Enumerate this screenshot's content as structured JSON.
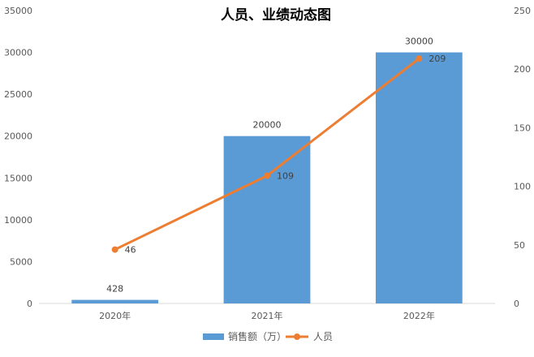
{
  "chart_data": {
    "type": "bar",
    "title": "人员、业绩动态图",
    "categories": [
      "2020年",
      "2021年",
      "2022年"
    ],
    "series": [
      {
        "name": "销售额（万）",
        "type": "bar",
        "axis": "left",
        "values": [
          428,
          20000,
          30000
        ],
        "data_labels": [
          "428",
          "20000",
          "30000"
        ],
        "color": "#5B9BD5"
      },
      {
        "name": "人员",
        "type": "line",
        "axis": "right",
        "values": [
          46,
          109,
          209
        ],
        "data_labels": [
          "46",
          "109",
          "209"
        ],
        "color": "#ED7D31"
      }
    ],
    "y_left": {
      "min": 0,
      "max": 35000,
      "ticks": [
        0,
        5000,
        10000,
        15000,
        20000,
        25000,
        30000,
        35000
      ],
      "tick_labels": [
        "0",
        "5000",
        "10000",
        "15000",
        "20000",
        "25000",
        "30000",
        "35000"
      ]
    },
    "y_right": {
      "min": 0,
      "max": 250,
      "ticks": [
        0,
        50,
        100,
        150,
        200,
        250
      ],
      "tick_labels": [
        "0",
        "50",
        "100",
        "150",
        "200",
        "250"
      ]
    },
    "grid": false,
    "legend": "bottom"
  }
}
